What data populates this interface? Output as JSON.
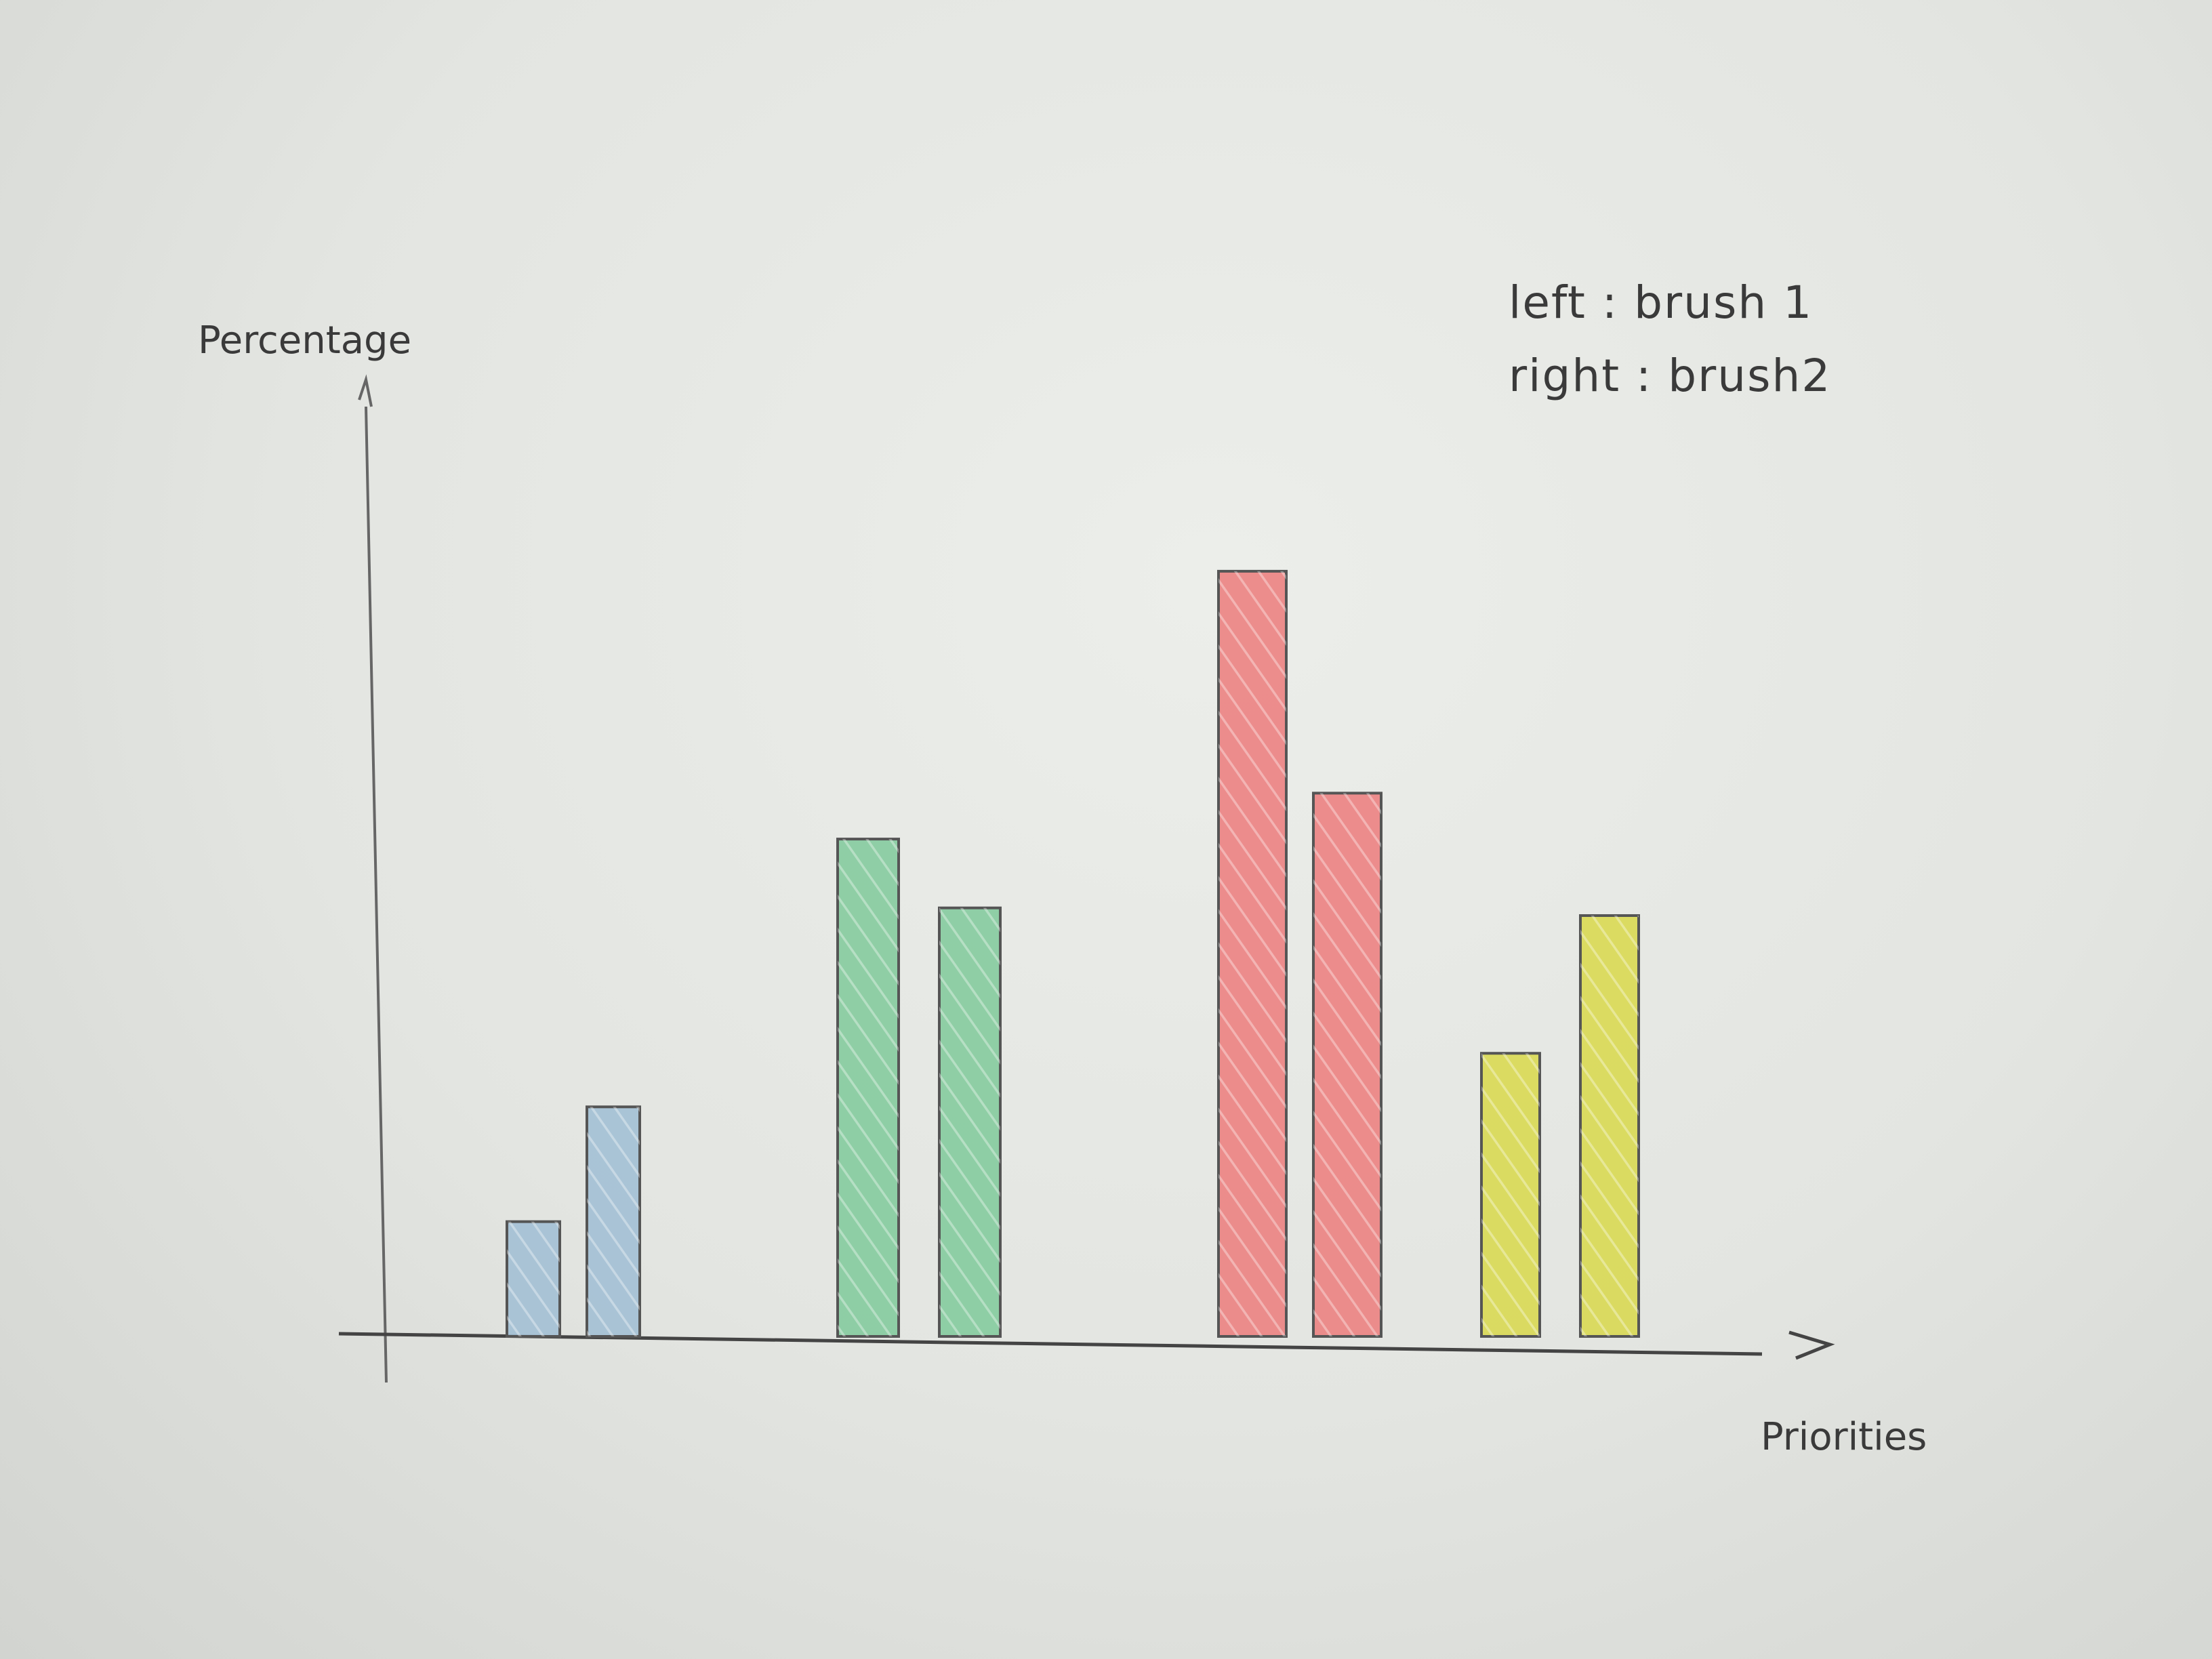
{
  "chart_data": {
    "type": "bar",
    "title": "",
    "xlabel": "Priorities",
    "ylabel": "Percentage",
    "categories": [
      "",
      "",
      "",
      ""
    ],
    "series": [
      {
        "name": "brush 1",
        "values": [
          15,
          65,
          100,
          37
        ]
      },
      {
        "name": "brush 2",
        "values": [
          30,
          56,
          71,
          55
        ]
      }
    ],
    "ylim": [
      0,
      110
    ],
    "grid": false,
    "legend": {
      "placement": "top-right",
      "entries": [
        "left : brush 1",
        "right : brush2"
      ]
    },
    "colors": [
      "#9fbdd4",
      "#7fc99a",
      "#ec7b7b",
      "#d8d84a"
    ]
  }
}
